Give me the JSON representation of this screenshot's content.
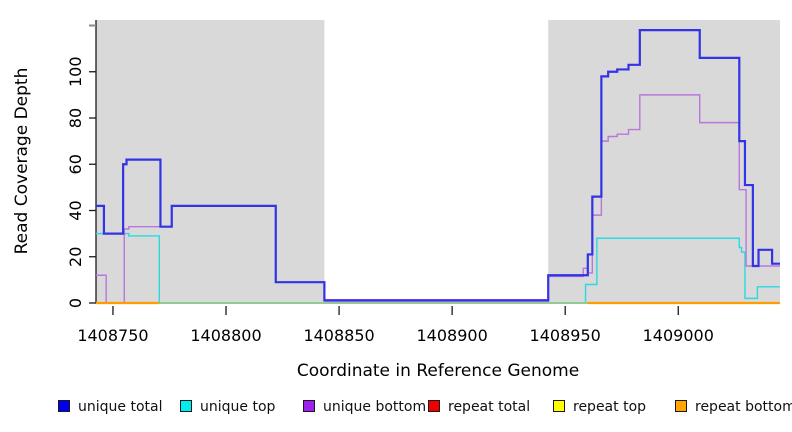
{
  "chart_data": {
    "type": "line",
    "subtype": "step-coverage",
    "title": "",
    "xlabel": "Coordinate in Reference Genome",
    "ylabel": "Read Coverage Depth",
    "x_ticks": [
      1408750,
      1408800,
      1408850,
      1408900,
      1408950,
      1409000
    ],
    "y_ticks": [
      0,
      20,
      40,
      60,
      80,
      100
    ],
    "y_tick_unlabeled": 120,
    "xlim": [
      1408742.5,
      1409045
    ],
    "ylim": [
      0,
      122
    ],
    "grid": false,
    "shade_color": "#d9d9d9",
    "shaded_regions": [
      [
        1408742.5,
        1408843.5
      ],
      [
        1408942.5,
        1409045
      ]
    ],
    "series": [
      {
        "name": "unique total",
        "color": "#3232e6",
        "width": 2.2,
        "steps": [
          [
            1408742.5,
            42
          ],
          [
            1408746,
            30
          ],
          [
            1408754.5,
            60
          ],
          [
            1408756,
            62
          ],
          [
            1408771,
            33
          ],
          [
            1408776,
            42
          ],
          [
            1408822,
            9
          ],
          [
            1408843.5,
            1.2
          ],
          [
            1408942.5,
            12
          ],
          [
            1408960,
            21
          ],
          [
            1408962,
            46
          ],
          [
            1408966,
            98
          ],
          [
            1408969,
            100
          ],
          [
            1408973,
            101
          ],
          [
            1408978,
            103
          ],
          [
            1408983,
            118
          ],
          [
            1409009.5,
            106
          ],
          [
            1409027,
            70
          ],
          [
            1409029.5,
            51
          ],
          [
            1409033,
            16
          ],
          [
            1409035.5,
            23
          ],
          [
            1409041.5,
            17
          ]
        ]
      },
      {
        "name": "unique top",
        "color": "#2adade",
        "width": 1.4,
        "steps": [
          [
            1408742.5,
            30
          ],
          [
            1408757,
            29
          ],
          [
            1408770.5,
            0
          ],
          [
            1408959,
            8
          ],
          [
            1408964,
            28
          ],
          [
            1409027,
            24
          ],
          [
            1409028,
            22
          ],
          [
            1409029.5,
            2
          ],
          [
            1409035,
            7
          ]
        ]
      },
      {
        "name": "unique bottom",
        "color": "#b977dd",
        "width": 1.4,
        "steps": [
          [
            1408742.5,
            12
          ],
          [
            1408747,
            0
          ],
          [
            1408755,
            32
          ],
          [
            1408757,
            33
          ],
          [
            1408776,
            42
          ],
          [
            1408822,
            9
          ],
          [
            1408843.5,
            0.5
          ],
          [
            1408942.5,
            11.5
          ],
          [
            1408958,
            15
          ],
          [
            1408960,
            13
          ],
          [
            1408962,
            38
          ],
          [
            1408966,
            70
          ],
          [
            1408969,
            72
          ],
          [
            1408973,
            73
          ],
          [
            1408978,
            75
          ],
          [
            1408983,
            90
          ],
          [
            1409009.5,
            78
          ],
          [
            1409027,
            49
          ],
          [
            1409030,
            16
          ]
        ]
      },
      {
        "name": "repeat total",
        "color": "#dd0000",
        "width": 1.4,
        "steps": [
          [
            1408742.5,
            0
          ]
        ]
      },
      {
        "name": "repeat top",
        "color": "#eded00",
        "width": 1.4,
        "steps": [
          [
            1408742.5,
            0
          ]
        ]
      },
      {
        "name": "repeat bottom",
        "color": "#ff9d00",
        "width": 2.2,
        "steps": [
          [
            1408742.5,
            0
          ]
        ]
      }
    ],
    "baseline_overlay": {
      "blend_segment": [
        1408770.5,
        1408960
      ],
      "blend_color": "#95cc95",
      "orange_segments": [
        [
          1408742.5,
          1408770.5
        ],
        [
          1408960,
          1409045
        ]
      ],
      "orange_color": "#ff9d00"
    },
    "legend": [
      {
        "label": "unique total",
        "color": "#0000ee"
      },
      {
        "label": "unique top",
        "color": "#00eeee"
      },
      {
        "label": "unique bottom",
        "color": "#a020f0"
      },
      {
        "label": "repeat total",
        "color": "#ee0000"
      },
      {
        "label": "repeat top",
        "color": "#ffff00"
      },
      {
        "label": "repeat bottom",
        "color": "#ffa500"
      }
    ]
  }
}
